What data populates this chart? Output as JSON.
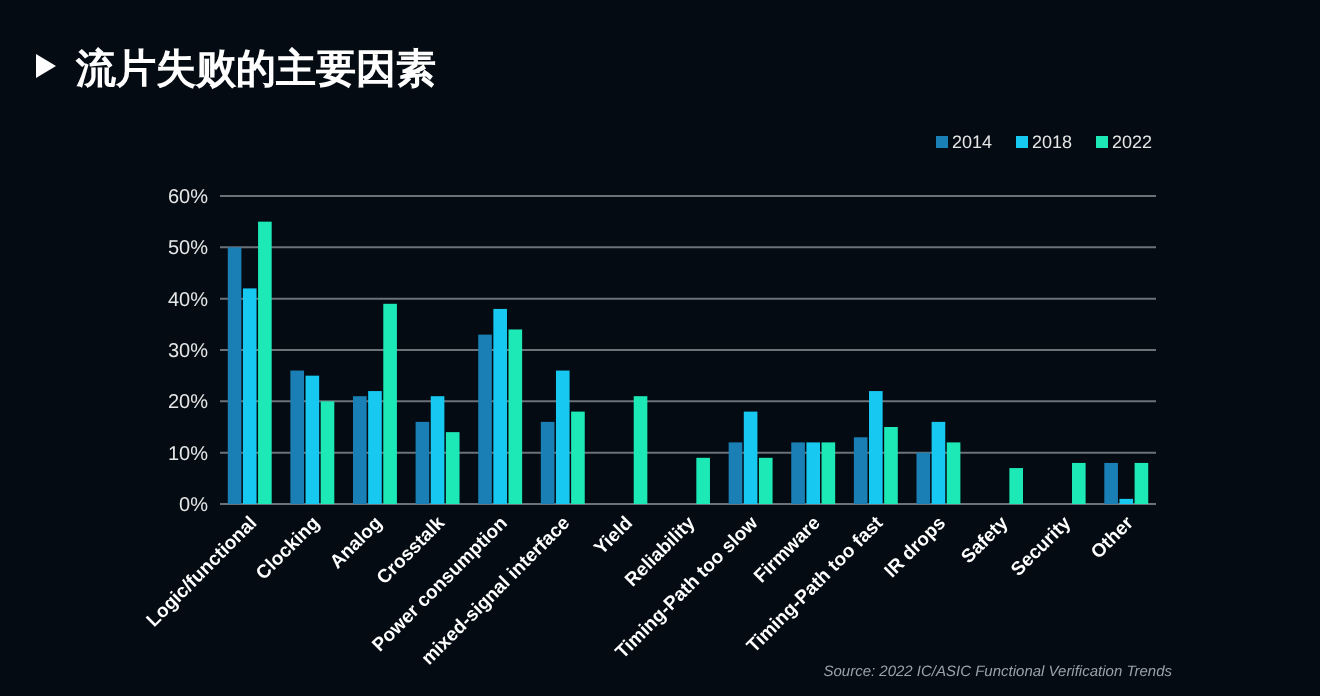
{
  "chart_data": {
    "type": "bar",
    "title": "流片失败的主要因素",
    "categories": [
      "Logic/functional",
      "Clocking",
      "Analog",
      "Crosstalk",
      "Power consumption",
      "mixed-signal interface",
      "Yield",
      "Reliability",
      "Timing-Path too slow",
      "Firmware",
      "Timing-Path too fast",
      "IR drops",
      "Safety",
      "Security",
      "Other"
    ],
    "series": [
      {
        "name": "2014",
        "color": "#1a7fb5",
        "values": [
          50,
          26,
          21,
          16,
          33,
          16,
          null,
          null,
          12,
          12,
          13,
          10,
          null,
          null,
          8
        ]
      },
      {
        "name": "2018",
        "color": "#17c8f0",
        "values": [
          42,
          25,
          22,
          21,
          38,
          26,
          null,
          null,
          18,
          12,
          22,
          16,
          null,
          null,
          1
        ]
      },
      {
        "name": "2022",
        "color": "#1de9b6",
        "values": [
          55,
          20,
          39,
          14,
          34,
          18,
          21,
          9,
          9,
          12,
          15,
          12,
          7,
          8,
          8
        ]
      }
    ],
    "ylim": [
      0,
      60
    ],
    "yticks": [
      {
        "value": 0,
        "label": "0%"
      },
      {
        "value": 10,
        "label": "10%"
      },
      {
        "value": 20,
        "label": "20%"
      },
      {
        "value": 30,
        "label": "30%"
      },
      {
        "value": 40,
        "label": "40%"
      },
      {
        "value": 50,
        "label": "50%"
      },
      {
        "value": 60,
        "label": "60%"
      }
    ],
    "grid": "y",
    "legend": "top right",
    "annotations": [
      "Source: 2022 IC/ASIC Functional Verification Trends"
    ]
  }
}
